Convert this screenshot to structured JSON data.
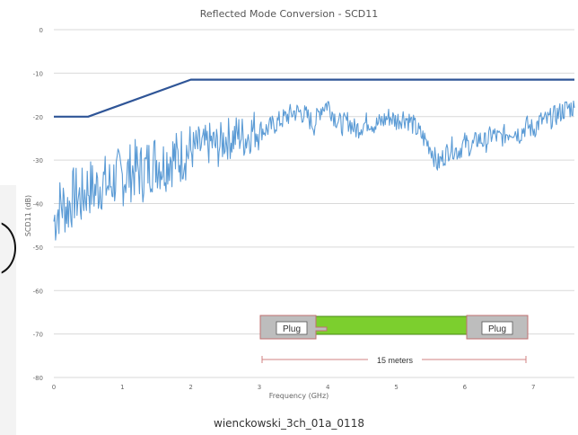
{
  "chart_data": {
    "type": "line",
    "title": "Reflected Mode Conversion - SCD11",
    "xlabel": "Frequency (GHz)",
    "ylabel": "SCD11 (dB)",
    "xlim": [
      0,
      7.6
    ],
    "ylim": [
      -80,
      0
    ],
    "x_ticks": [
      0,
      1,
      2,
      3,
      4,
      5,
      6,
      7
    ],
    "y_ticks": [
      0,
      -10,
      -20,
      -30,
      -40,
      -50,
      -60,
      -70,
      -80
    ],
    "grid": "horizontal",
    "series": [
      {
        "color": "#2f5597",
        "style": "limit",
        "x": [
          0,
          0.5,
          2.0,
          7.6
        ],
        "y": [
          -20,
          -20,
          -11.5,
          -11.5
        ]
      },
      {
        "color": "#5b9bd5",
        "style": "measured",
        "x": [
          0.0,
          0.1,
          0.2,
          0.3,
          0.4,
          0.5,
          0.6,
          0.7,
          0.8,
          0.9,
          1.0,
          1.1,
          1.2,
          1.3,
          1.4,
          1.5,
          1.6,
          1.7,
          1.8,
          1.9,
          2.0,
          2.1,
          2.2,
          2.3,
          2.4,
          2.5,
          2.6,
          2.7,
          2.8,
          2.9,
          3.0,
          3.1,
          3.2,
          3.3,
          3.4,
          3.5,
          3.6,
          3.7,
          3.8,
          3.9,
          4.0,
          4.1,
          4.2,
          4.3,
          4.4,
          4.5,
          4.6,
          4.7,
          4.8,
          4.9,
          5.0,
          5.1,
          5.2,
          5.3,
          5.4,
          5.5,
          5.6,
          5.7,
          5.8,
          5.9,
          6.0,
          6.1,
          6.2,
          6.3,
          6.4,
          6.5,
          6.6,
          6.7,
          6.8,
          6.9,
          7.0,
          7.1,
          7.2,
          7.3,
          7.4,
          7.5,
          7.6
        ],
        "y": [
          -44,
          -40,
          -41,
          -38,
          -39,
          -36,
          -37,
          -35,
          -36,
          -34,
          -34,
          -33,
          -32,
          -33,
          -31,
          -30,
          -31,
          -29,
          -30,
          -28,
          -28,
          -27,
          -27,
          -26,
          -27,
          -25,
          -25,
          -24,
          -25,
          -23,
          -23,
          -23,
          -22,
          -21,
          -20,
          -19,
          -19,
          -20,
          -22,
          -18,
          -17,
          -20,
          -22,
          -21,
          -23,
          -22,
          -21,
          -22,
          -21,
          -20,
          -21,
          -20,
          -21,
          -23,
          -25,
          -27,
          -31,
          -29,
          -27,
          -28,
          -26,
          -27,
          -25,
          -26,
          -24,
          -25,
          -24,
          -23,
          -24,
          -22,
          -23,
          -21,
          -21,
          -20,
          -19,
          -18,
          -18
        ]
      }
    ],
    "inset": {
      "plug_left_label": "Plug",
      "plug_right_label": "Plug",
      "length_label": "15 meters",
      "cable_color": "#7ccf2e"
    }
  },
  "caption": "wienckowski_3ch_01a_0118"
}
